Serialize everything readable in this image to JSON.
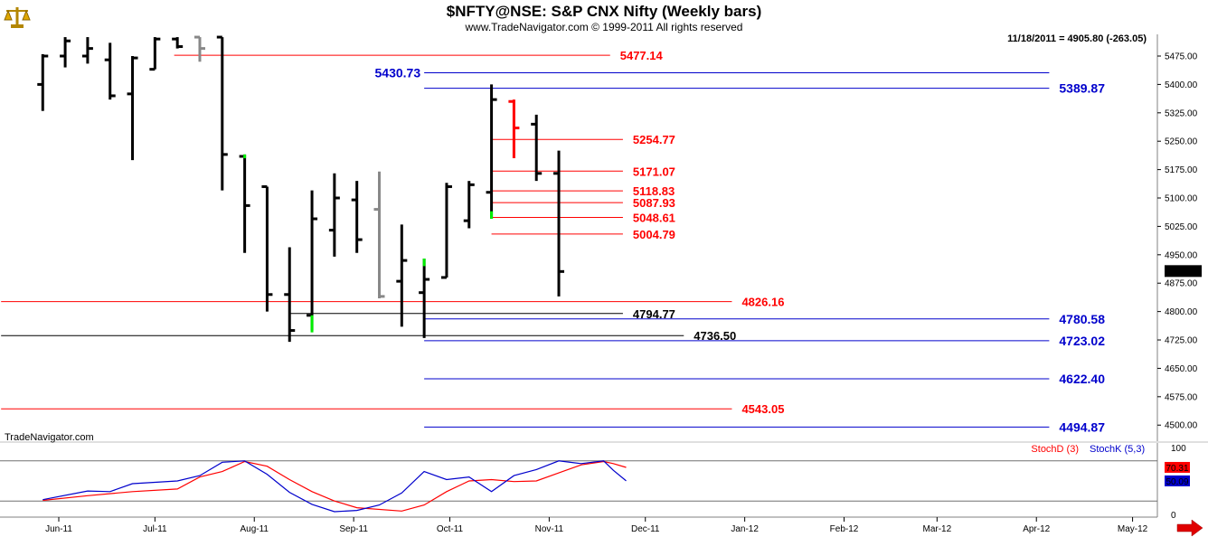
{
  "header": {
    "title": "$NFTY@NSE:  S&P CNX Nifty  (Weekly bars)",
    "subtitle": "www.TradeNavigator.com © 1999-2011 All rights reserved",
    "info": "11/18/2011 = 4905.80 (-263.05)",
    "watermark": "TradeNavigator.com",
    "logo_icon": "balance-scale-icon",
    "nav_icon": "right-arrow-icon"
  },
  "chart_data": [
    {
      "type": "ohlc",
      "title": "$NFTY@NSE:  S&P CNX Nifty  (Weekly bars)",
      "ylim": [
        4475,
        5525
      ],
      "yticks": [
        "5475.00",
        "5400.00",
        "5325.00",
        "5250.00",
        "5175.00",
        "5100.00",
        "5025.00",
        "4950.00",
        "4875.00",
        "4800.00",
        "4725.00",
        "4650.00",
        "4575.00",
        "4500.00"
      ],
      "xticks": [
        "Jun-11",
        "Jul-11",
        "Aug-11",
        "Sep-11",
        "Oct-11",
        "Nov-11",
        "Dec-11",
        "Jan-12",
        "Feb-12",
        "Mar-12",
        "Apr-12",
        "May-12"
      ],
      "last_value": "4905.80",
      "bars": [
        {
          "x": "2011-05-27",
          "open": 5400,
          "high": 5480,
          "low": 5330,
          "close": 5475,
          "color": "#000000"
        },
        {
          "x": "2011-06-03",
          "open": 5475,
          "high": 5525,
          "low": 5445,
          "close": 5515,
          "color": "#000000"
        },
        {
          "x": "2011-06-10",
          "open": 5475,
          "high": 5525,
          "low": 5455,
          "close": 5495,
          "color": "#000000"
        },
        {
          "x": "2011-06-17",
          "open": 5465,
          "high": 5510,
          "low": 5360,
          "close": 5370,
          "color": "#000000"
        },
        {
          "x": "2011-06-24",
          "open": 5375,
          "high": 5475,
          "low": 5200,
          "close": 5470,
          "color": "#000000"
        },
        {
          "x": "2011-07-01",
          "open": 5440,
          "high": 5525,
          "low": 5440,
          "close": 5520,
          "color": "#000000"
        },
        {
          "x": "2011-07-08",
          "open": 5520,
          "high": 5525,
          "low": 5495,
          "close": 5500,
          "color": "#000000"
        },
        {
          "x": "2011-07-15",
          "open": 5525,
          "high": 5525,
          "low": 5460,
          "close": 5495,
          "color": "#888888"
        },
        {
          "x": "2011-07-22",
          "open": 5525,
          "high": 5525,
          "low": 5120,
          "close": 5215,
          "color": "#000000"
        },
        {
          "x": "2011-07-29",
          "open": 5210,
          "high": 5215,
          "low": 4955,
          "close": 5080,
          "color": "#000000"
        },
        {
          "x": "2011-08-05",
          "open": 5130,
          "high": 5130,
          "low": 4800,
          "close": 4845,
          "color": "#000000"
        },
        {
          "x": "2011-08-12",
          "open": 4845,
          "high": 4970,
          "low": 4720,
          "close": 4750,
          "color": "#000000"
        },
        {
          "x": "2011-08-19",
          "open": 4790,
          "high": 5120,
          "low": 4750,
          "close": 5045,
          "color": "#000000"
        },
        {
          "x": "2011-08-26",
          "open": 5015,
          "high": 5165,
          "low": 4945,
          "close": 5100,
          "color": "#000000"
        },
        {
          "x": "2011-09-02",
          "open": 5095,
          "high": 5145,
          "low": 4955,
          "close": 4990,
          "color": "#000000"
        },
        {
          "x": "2011-09-09",
          "open": 5070,
          "high": 5170,
          "low": 4835,
          "close": 4840,
          "color": "#888888"
        },
        {
          "x": "2011-09-16",
          "open": 4880,
          "high": 5030,
          "low": 4760,
          "close": 4935,
          "color": "#000000"
        },
        {
          "x": "2011-09-23",
          "open": 4850,
          "high": 4940,
          "low": 4730,
          "close": 4885,
          "color": "#000000"
        },
        {
          "x": "2011-09-30",
          "open": 4890,
          "high": 5140,
          "low": 4890,
          "close": 5130,
          "color": "#000000"
        },
        {
          "x": "2011-10-07",
          "open": 5040,
          "high": 5145,
          "low": 5020,
          "close": 5135,
          "color": "#000000"
        },
        {
          "x": "2011-10-14",
          "open": 5115,
          "high": 5400,
          "low": 5045,
          "close": 5360,
          "color": "#000000"
        },
        {
          "x": "2011-10-21",
          "open": 5355,
          "high": 5360,
          "low": 5205,
          "close": 5285,
          "color": "#ff0000"
        },
        {
          "x": "2011-10-28",
          "open": 5295,
          "high": 5320,
          "low": 5145,
          "close": 5165,
          "color": "#000000"
        },
        {
          "x": "2011-11-04",
          "open": 5165,
          "high": 5225,
          "low": 4840,
          "close": 4905.8,
          "color": "#000000"
        }
      ],
      "green_ticks": [
        {
          "x": "2011-07-29",
          "from": 5215,
          "to": 5205
        },
        {
          "x": "2011-08-19",
          "from": 4790,
          "to": 4745
        },
        {
          "x": "2011-09-23",
          "from": 4940,
          "to": 4920
        },
        {
          "x": "2011-10-14",
          "from": 5065,
          "to": 5045
        }
      ],
      "levels": [
        {
          "label": "5477.14",
          "value": 5477.14,
          "color": "#ff0000",
          "from": "2011-07-07",
          "to": "2011-11-20"
        },
        {
          "label": "5430.73",
          "value": 5430.73,
          "color": "#0000cc",
          "from": "2011-09-23",
          "to": "2012-04-05",
          "label_side": "left"
        },
        {
          "label": "5389.87",
          "value": 5389.87,
          "color": "#0000cc",
          "from": "2011-09-23",
          "to": "2012-04-05"
        },
        {
          "label": "5254.77",
          "value": 5254.77,
          "color": "#ff0000",
          "from": "2011-10-14",
          "to": "2011-11-24"
        },
        {
          "label": "5171.07",
          "value": 5171.07,
          "color": "#ff0000",
          "from": "2011-10-14",
          "to": "2011-11-24"
        },
        {
          "label": "5118.83",
          "value": 5118.83,
          "color": "#ff0000",
          "from": "2011-10-14",
          "to": "2011-11-24"
        },
        {
          "label": "5087.93",
          "value": 5087.93,
          "color": "#ff0000",
          "from": "2011-10-14",
          "to": "2011-11-24"
        },
        {
          "label": "5048.61",
          "value": 5048.61,
          "color": "#ff0000",
          "from": "2011-10-14",
          "to": "2011-11-24"
        },
        {
          "label": "5004.79",
          "value": 5004.79,
          "color": "#ff0000",
          "from": "2011-10-14",
          "to": "2011-11-24"
        },
        {
          "label": "4826.16",
          "value": 4826.16,
          "color": "#ff0000",
          "from": "2011-05-14",
          "to": "2011-12-28"
        },
        {
          "label": "4794.77",
          "value": 4794.77,
          "color": "#000000",
          "from": "2011-08-12",
          "to": "2011-11-24"
        },
        {
          "label": "4780.58",
          "value": 4780.58,
          "color": "#0000cc",
          "from": "2011-09-23",
          "to": "2012-04-05"
        },
        {
          "label": "4736.50",
          "value": 4736.5,
          "color": "#000000",
          "from": "2011-05-14",
          "to": "2011-12-13"
        },
        {
          "label": "4723.02",
          "value": 4723.02,
          "color": "#0000cc",
          "from": "2011-09-23",
          "to": "2012-04-05"
        },
        {
          "label": "4622.40",
          "value": 4622.4,
          "color": "#0000cc",
          "from": "2011-09-23",
          "to": "2012-04-05"
        },
        {
          "label": "4543.05",
          "value": 4543.05,
          "color": "#ff0000",
          "from": "2011-05-14",
          "to": "2011-12-28"
        },
        {
          "label": "4494.87",
          "value": 4494.87,
          "color": "#0000cc",
          "from": "2011-09-23",
          "to": "2012-04-05"
        }
      ]
    },
    {
      "type": "line",
      "title": "",
      "ylim": [
        0,
        100
      ],
      "yticks": [
        "100",
        "0"
      ],
      "reference_lines": [
        80,
        20
      ],
      "series": [
        {
          "name": "StochD (3)",
          "color": "#ff0000",
          "last_label": "70.31",
          "points": [
            [
              "2011-05-27",
              21
            ],
            [
              "2011-06-10",
              28
            ],
            [
              "2011-06-24",
              34
            ],
            [
              "2011-07-08",
              38
            ],
            [
              "2011-07-15",
              56
            ],
            [
              "2011-07-22",
              64
            ],
            [
              "2011-07-29",
              79
            ],
            [
              "2011-08-05",
              72
            ],
            [
              "2011-08-12",
              52
            ],
            [
              "2011-08-19",
              34
            ],
            [
              "2011-08-26",
              20
            ],
            [
              "2011-09-02",
              10
            ],
            [
              "2011-09-16",
              5
            ],
            [
              "2011-09-23",
              14
            ],
            [
              "2011-09-30",
              34
            ],
            [
              "2011-10-07",
              50
            ],
            [
              "2011-10-14",
              52
            ],
            [
              "2011-10-21",
              49
            ],
            [
              "2011-10-28",
              50
            ],
            [
              "2011-11-04",
              62
            ],
            [
              "2011-11-11",
              74
            ],
            [
              "2011-11-18",
              79
            ],
            [
              "2011-11-21",
              76
            ],
            [
              "2011-11-25",
              70.31
            ]
          ]
        },
        {
          "name": "StochK (5,3)",
          "color": "#0000cc",
          "last_label": "50.09",
          "points": [
            [
              "2011-05-27",
              22
            ],
            [
              "2011-06-10",
              35
            ],
            [
              "2011-06-17",
              34
            ],
            [
              "2011-06-24",
              46
            ],
            [
              "2011-07-08",
              50
            ],
            [
              "2011-07-15",
              58
            ],
            [
              "2011-07-22",
              78
            ],
            [
              "2011-07-29",
              80
            ],
            [
              "2011-08-05",
              60
            ],
            [
              "2011-08-12",
              33
            ],
            [
              "2011-08-19",
              15
            ],
            [
              "2011-08-26",
              4
            ],
            [
              "2011-09-02",
              6
            ],
            [
              "2011-09-09",
              14
            ],
            [
              "2011-09-16",
              32
            ],
            [
              "2011-09-23",
              64
            ],
            [
              "2011-09-30",
              52
            ],
            [
              "2011-10-07",
              56
            ],
            [
              "2011-10-14",
              34
            ],
            [
              "2011-10-21",
              58
            ],
            [
              "2011-10-28",
              67
            ],
            [
              "2011-11-04",
              80
            ],
            [
              "2011-11-11",
              76
            ],
            [
              "2011-11-18",
              80
            ],
            [
              "2011-11-21",
              66
            ],
            [
              "2011-11-25",
              50.09
            ]
          ]
        }
      ]
    }
  ]
}
